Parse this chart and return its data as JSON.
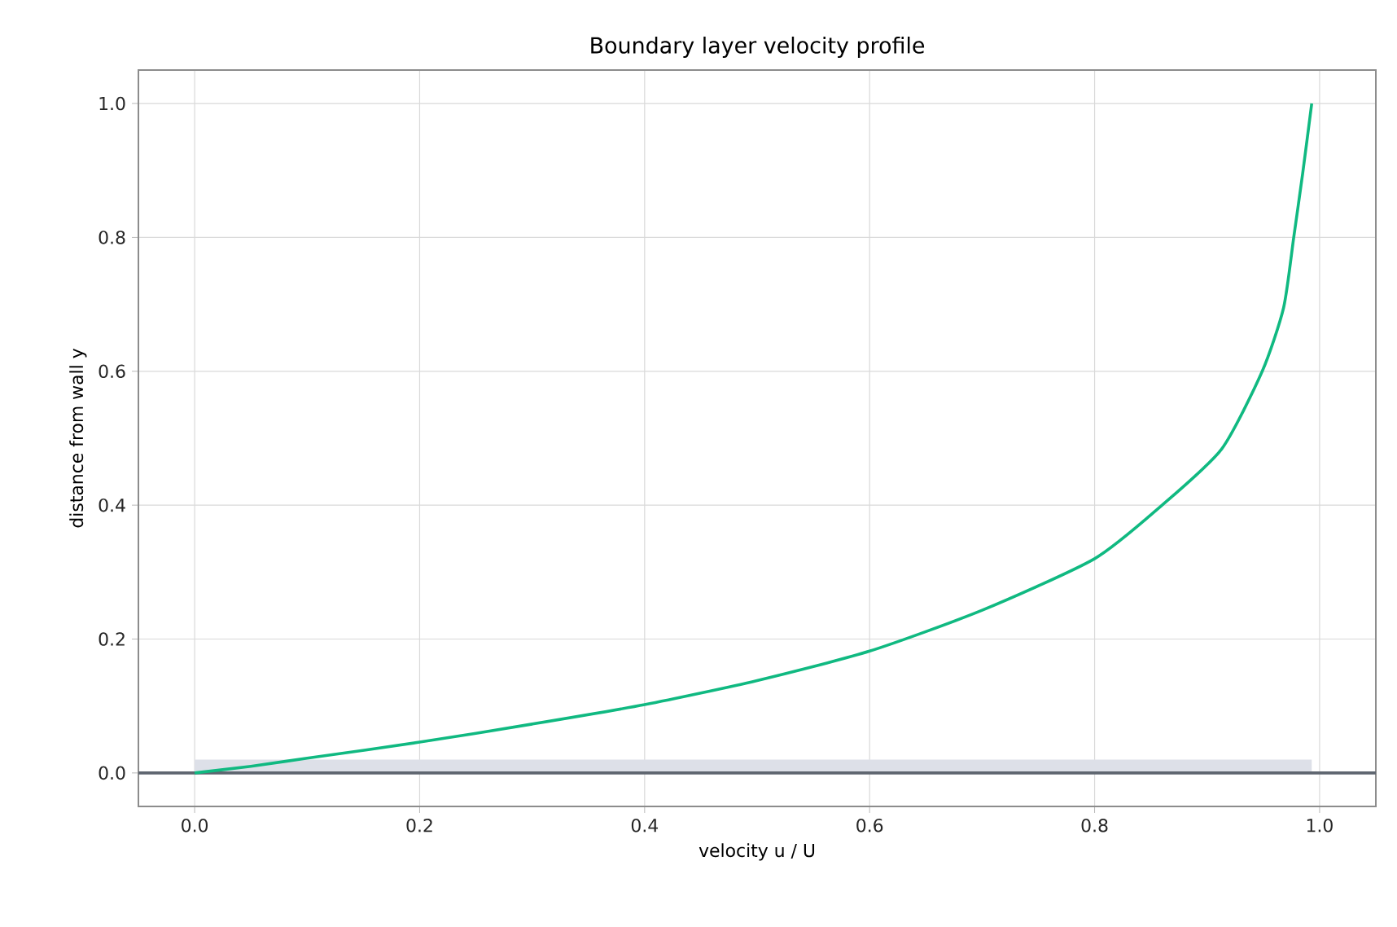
{
  "chart_data": {
    "type": "line",
    "title": "Boundary layer velocity profile",
    "xlabel": "velocity u / U",
    "ylabel": "distance from wall y",
    "x": [
      0,
      0.05,
      0.1,
      0.2,
      0.3,
      0.4,
      0.5,
      0.6,
      0.7,
      0.8,
      0.86,
      0.913,
      0.949,
      0.968,
      0.977,
      0.985,
      0.993
    ],
    "series": [
      {
        "color": "#10b981",
        "values": [
          0,
          0.01,
          0.022,
          0.046,
          0.073,
          0.102,
          0.138,
          0.182,
          0.243,
          0.32,
          0.4,
          0.484,
          0.6,
          0.695,
          0.8,
          0.896,
          1.0
        ]
      }
    ],
    "bands": [
      {
        "axis": "y",
        "from": 0,
        "to": 0.02,
        "color": "#dde0e8"
      }
    ],
    "ref_lines": [
      {
        "axis": "y",
        "value": 0,
        "color": "#5f6670"
      }
    ],
    "xlim": [
      -0.05,
      1.05
    ],
    "ylim": [
      -0.05,
      1.05
    ],
    "xticks": [
      {
        "value": 0,
        "label": "0.0"
      },
      0.2,
      0.4,
      0.6,
      0.8,
      {
        "value": 1,
        "label": "1.0"
      }
    ],
    "yticks": [
      {
        "value": 0,
        "label": "0.0"
      },
      0.2,
      0.4,
      0.6,
      0.8,
      {
        "value": 1,
        "label": "1.0"
      }
    ],
    "grid": true
  }
}
